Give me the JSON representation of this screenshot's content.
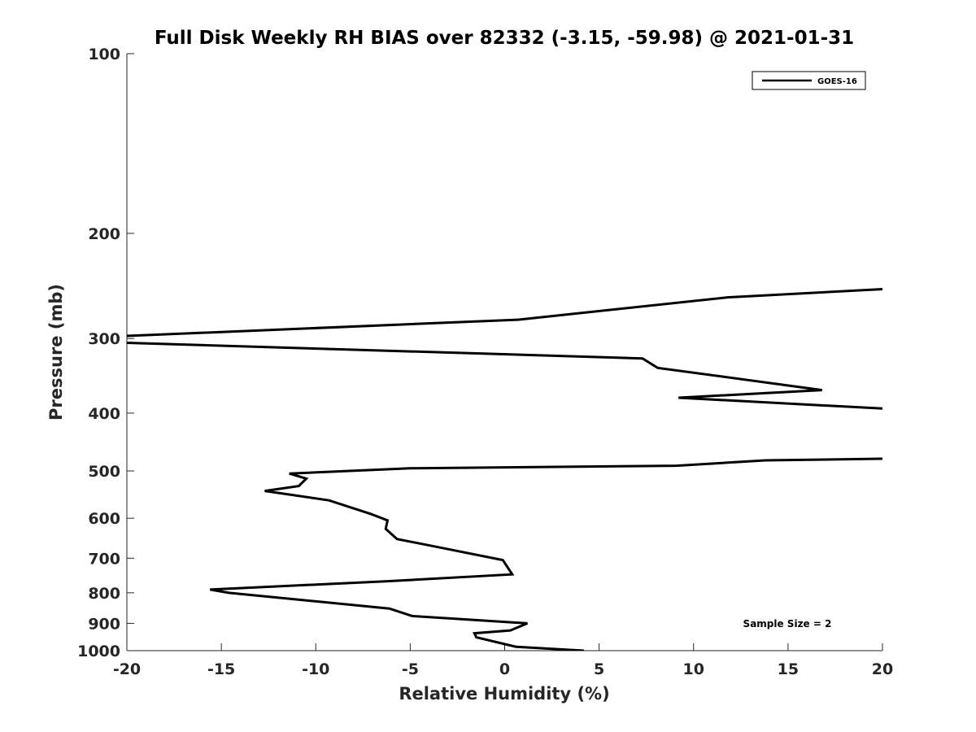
{
  "chart_data": {
    "type": "line",
    "title": "Full Disk Weekly RH BIAS over 82332 (-3.15, -59.98) @ 2021-01-31",
    "xlabel": "Relative Humidity (%)",
    "ylabel": "Pressure (mb)",
    "xlim": [
      -20,
      20
    ],
    "ylim": [
      100,
      1000
    ],
    "y_scale": "log",
    "y_reversed": true,
    "x_ticks": [
      -20,
      -15,
      -10,
      -5,
      0,
      5,
      10,
      15,
      20
    ],
    "y_ticks": [
      100,
      200,
      300,
      400,
      500,
      600,
      700,
      800,
      900,
      1000
    ],
    "grid": false,
    "legend": {
      "position": "top-right",
      "entries": [
        "GOES-16"
      ]
    },
    "annotation": "Sample Size = 2",
    "series": [
      {
        "name": "GOES-16",
        "color": "#000000",
        "points": [
          [
            4.2,
            1000
          ],
          [
            0.6,
            985
          ],
          [
            -1.5,
            950
          ],
          [
            -1.6,
            935
          ],
          [
            0.3,
            925
          ],
          [
            1.2,
            900
          ],
          [
            -4.9,
            875
          ],
          [
            -6.1,
            850
          ],
          [
            -14.6,
            800
          ],
          [
            -15.6,
            790
          ],
          [
            -6.2,
            765
          ],
          [
            0.4,
            745
          ],
          [
            -0.1,
            705
          ],
          [
            -3.1,
            675
          ],
          [
            -5.7,
            650
          ],
          [
            -6.3,
            625
          ],
          [
            -6.2,
            605
          ],
          [
            -7.1,
            590
          ],
          [
            -9.3,
            560
          ],
          [
            -12.7,
            540
          ],
          [
            -10.9,
            530
          ],
          [
            -10.5,
            515
          ],
          [
            -11.4,
            505
          ],
          [
            -5,
            495
          ],
          [
            9.1,
            490
          ],
          [
            13.8,
            480
          ],
          [
            20,
            477
          ]
        ]
      },
      {
        "name": "GOES-16",
        "color": "#000000",
        "points": [
          [
            20,
            393
          ],
          [
            9.2,
            377
          ],
          [
            16.8,
            366
          ],
          [
            8.1,
            336
          ],
          [
            7.3,
            324
          ],
          [
            -20,
            305
          ]
        ]
      },
      {
        "name": "GOES-16",
        "color": "#000000",
        "points": [
          [
            -20,
            297
          ],
          [
            0.7,
            279
          ],
          [
            11.8,
            256
          ],
          [
            20,
            248
          ]
        ]
      }
    ]
  }
}
